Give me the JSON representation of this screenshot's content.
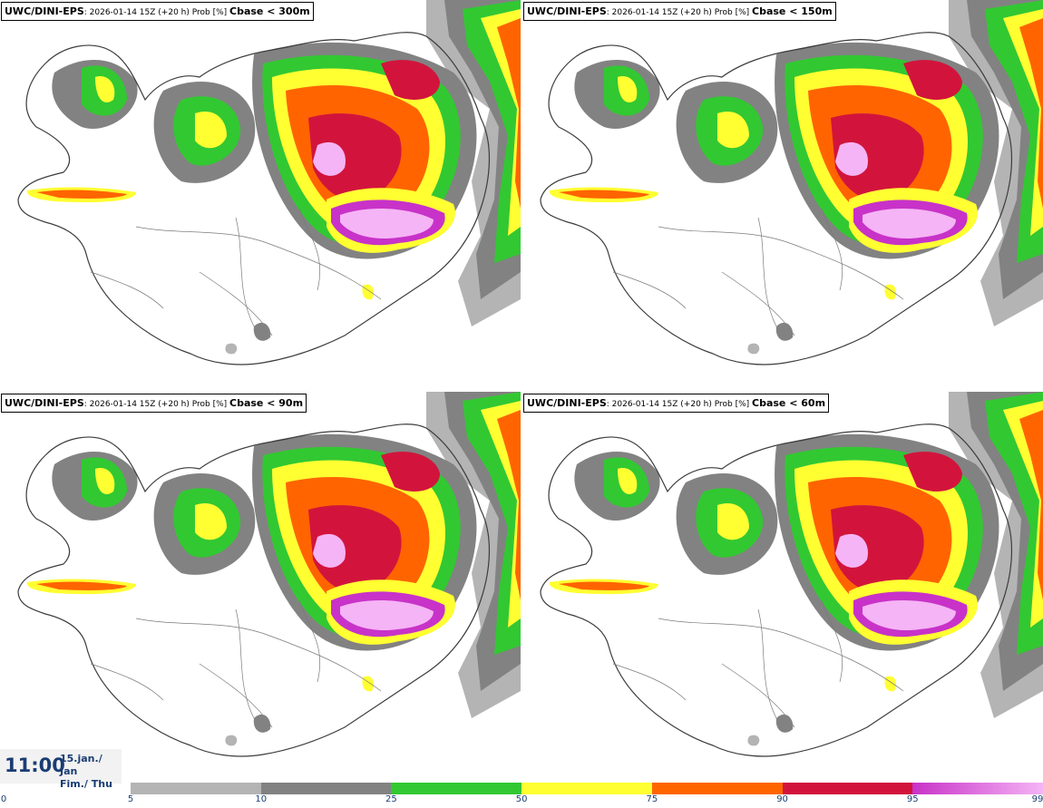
{
  "panels": [
    {
      "model": "UWC/DINI-EPS",
      "info": ": 2026-01-14 15Z (+20 h) Prob [%] ",
      "variable": "Cbase < 300m",
      "coverage": 1.0
    },
    {
      "model": "UWC/DINI-EPS",
      "info": ": 2026-01-14 15Z (+20 h) Prob [%] ",
      "variable": "Cbase < 150m",
      "coverage": 0.8
    },
    {
      "model": "UWC/DINI-EPS",
      "info": ": 2026-01-14 15Z (+20 h) Prob [%] ",
      "variable": "Cbase < 90m",
      "coverage": 0.55
    },
    {
      "model": "UWC/DINI-EPS",
      "info": ": 2026-01-14 15Z (+20 h) Prob [%] ",
      "variable": "Cbase < 60m",
      "coverage": 0.5
    }
  ],
  "time": {
    "hour": "11:00",
    "date_line1": "15.jan./ Jan",
    "date_line2": "Fim./ Thu"
  },
  "legend": {
    "labels": [
      "0",
      "5",
      "10",
      "25",
      "50",
      "75",
      "90",
      "95",
      "99"
    ],
    "segments": [
      {
        "from": 5,
        "to": 10,
        "color": "#b4b4b4"
      },
      {
        "from": 10,
        "to": 25,
        "color": "#828282"
      },
      {
        "from": 25,
        "to": 50,
        "color": "#32c832"
      },
      {
        "from": 50,
        "to": 75,
        "color": "#ffff32"
      },
      {
        "from": 75,
        "to": 90,
        "color": "#ff6400"
      },
      {
        "from": 90,
        "to": 95,
        "color": "#d2143c"
      },
      {
        "from": 95,
        "to": 99,
        "color": "#c832c8",
        "gradient_to": "#f5b4f5"
      }
    ]
  }
}
